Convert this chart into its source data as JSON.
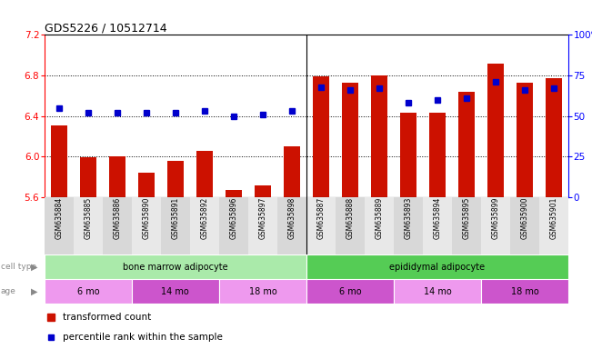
{
  "title": "GDS5226 / 10512714",
  "samples": [
    "GSM635884",
    "GSM635885",
    "GSM635886",
    "GSM635890",
    "GSM635891",
    "GSM635892",
    "GSM635896",
    "GSM635897",
    "GSM635898",
    "GSM635887",
    "GSM635888",
    "GSM635889",
    "GSM635893",
    "GSM635894",
    "GSM635895",
    "GSM635899",
    "GSM635900",
    "GSM635901"
  ],
  "bar_values": [
    6.31,
    5.99,
    6.0,
    5.84,
    5.96,
    6.06,
    5.67,
    5.72,
    6.1,
    6.79,
    6.73,
    6.8,
    6.43,
    6.43,
    6.64,
    6.92,
    6.73,
    6.77
  ],
  "dot_values": [
    55,
    52,
    52,
    52,
    52,
    53,
    50,
    51,
    53,
    68,
    66,
    67,
    58,
    60,
    61,
    71,
    66,
    67
  ],
  "ylim_left": [
    5.6,
    7.2
  ],
  "ylim_right": [
    0,
    100
  ],
  "yticks_left": [
    5.6,
    6.0,
    6.4,
    6.8,
    7.2
  ],
  "yticks_right": [
    0,
    25,
    50,
    75,
    100
  ],
  "bar_color": "#cc1100",
  "dot_color": "#0000cc",
  "cell_type_groups": [
    {
      "label": "bone marrow adipocyte",
      "start": 0,
      "end": 9,
      "color": "#aaeaaa"
    },
    {
      "label": "epididymal adipocyte",
      "start": 9,
      "end": 18,
      "color": "#55cc55"
    }
  ],
  "age_groups": [
    {
      "label": "6 mo",
      "start": 0,
      "end": 3,
      "color": "#ee99ee"
    },
    {
      "label": "14 mo",
      "start": 3,
      "end": 6,
      "color": "#cc55cc"
    },
    {
      "label": "18 mo",
      "start": 6,
      "end": 9,
      "color": "#ee99ee"
    },
    {
      "label": "6 mo",
      "start": 9,
      "end": 12,
      "color": "#cc55cc"
    },
    {
      "label": "14 mo",
      "start": 12,
      "end": 15,
      "color": "#ee99ee"
    },
    {
      "label": "18 mo",
      "start": 15,
      "end": 18,
      "color": "#cc55cc"
    }
  ],
  "legend_bar_label": "transformed count",
  "legend_dot_label": "percentile rank within the sample",
  "cell_type_label": "cell type",
  "age_label": "age",
  "grid_lines": [
    6.0,
    6.4,
    6.8
  ],
  "separator_at": 8.5
}
